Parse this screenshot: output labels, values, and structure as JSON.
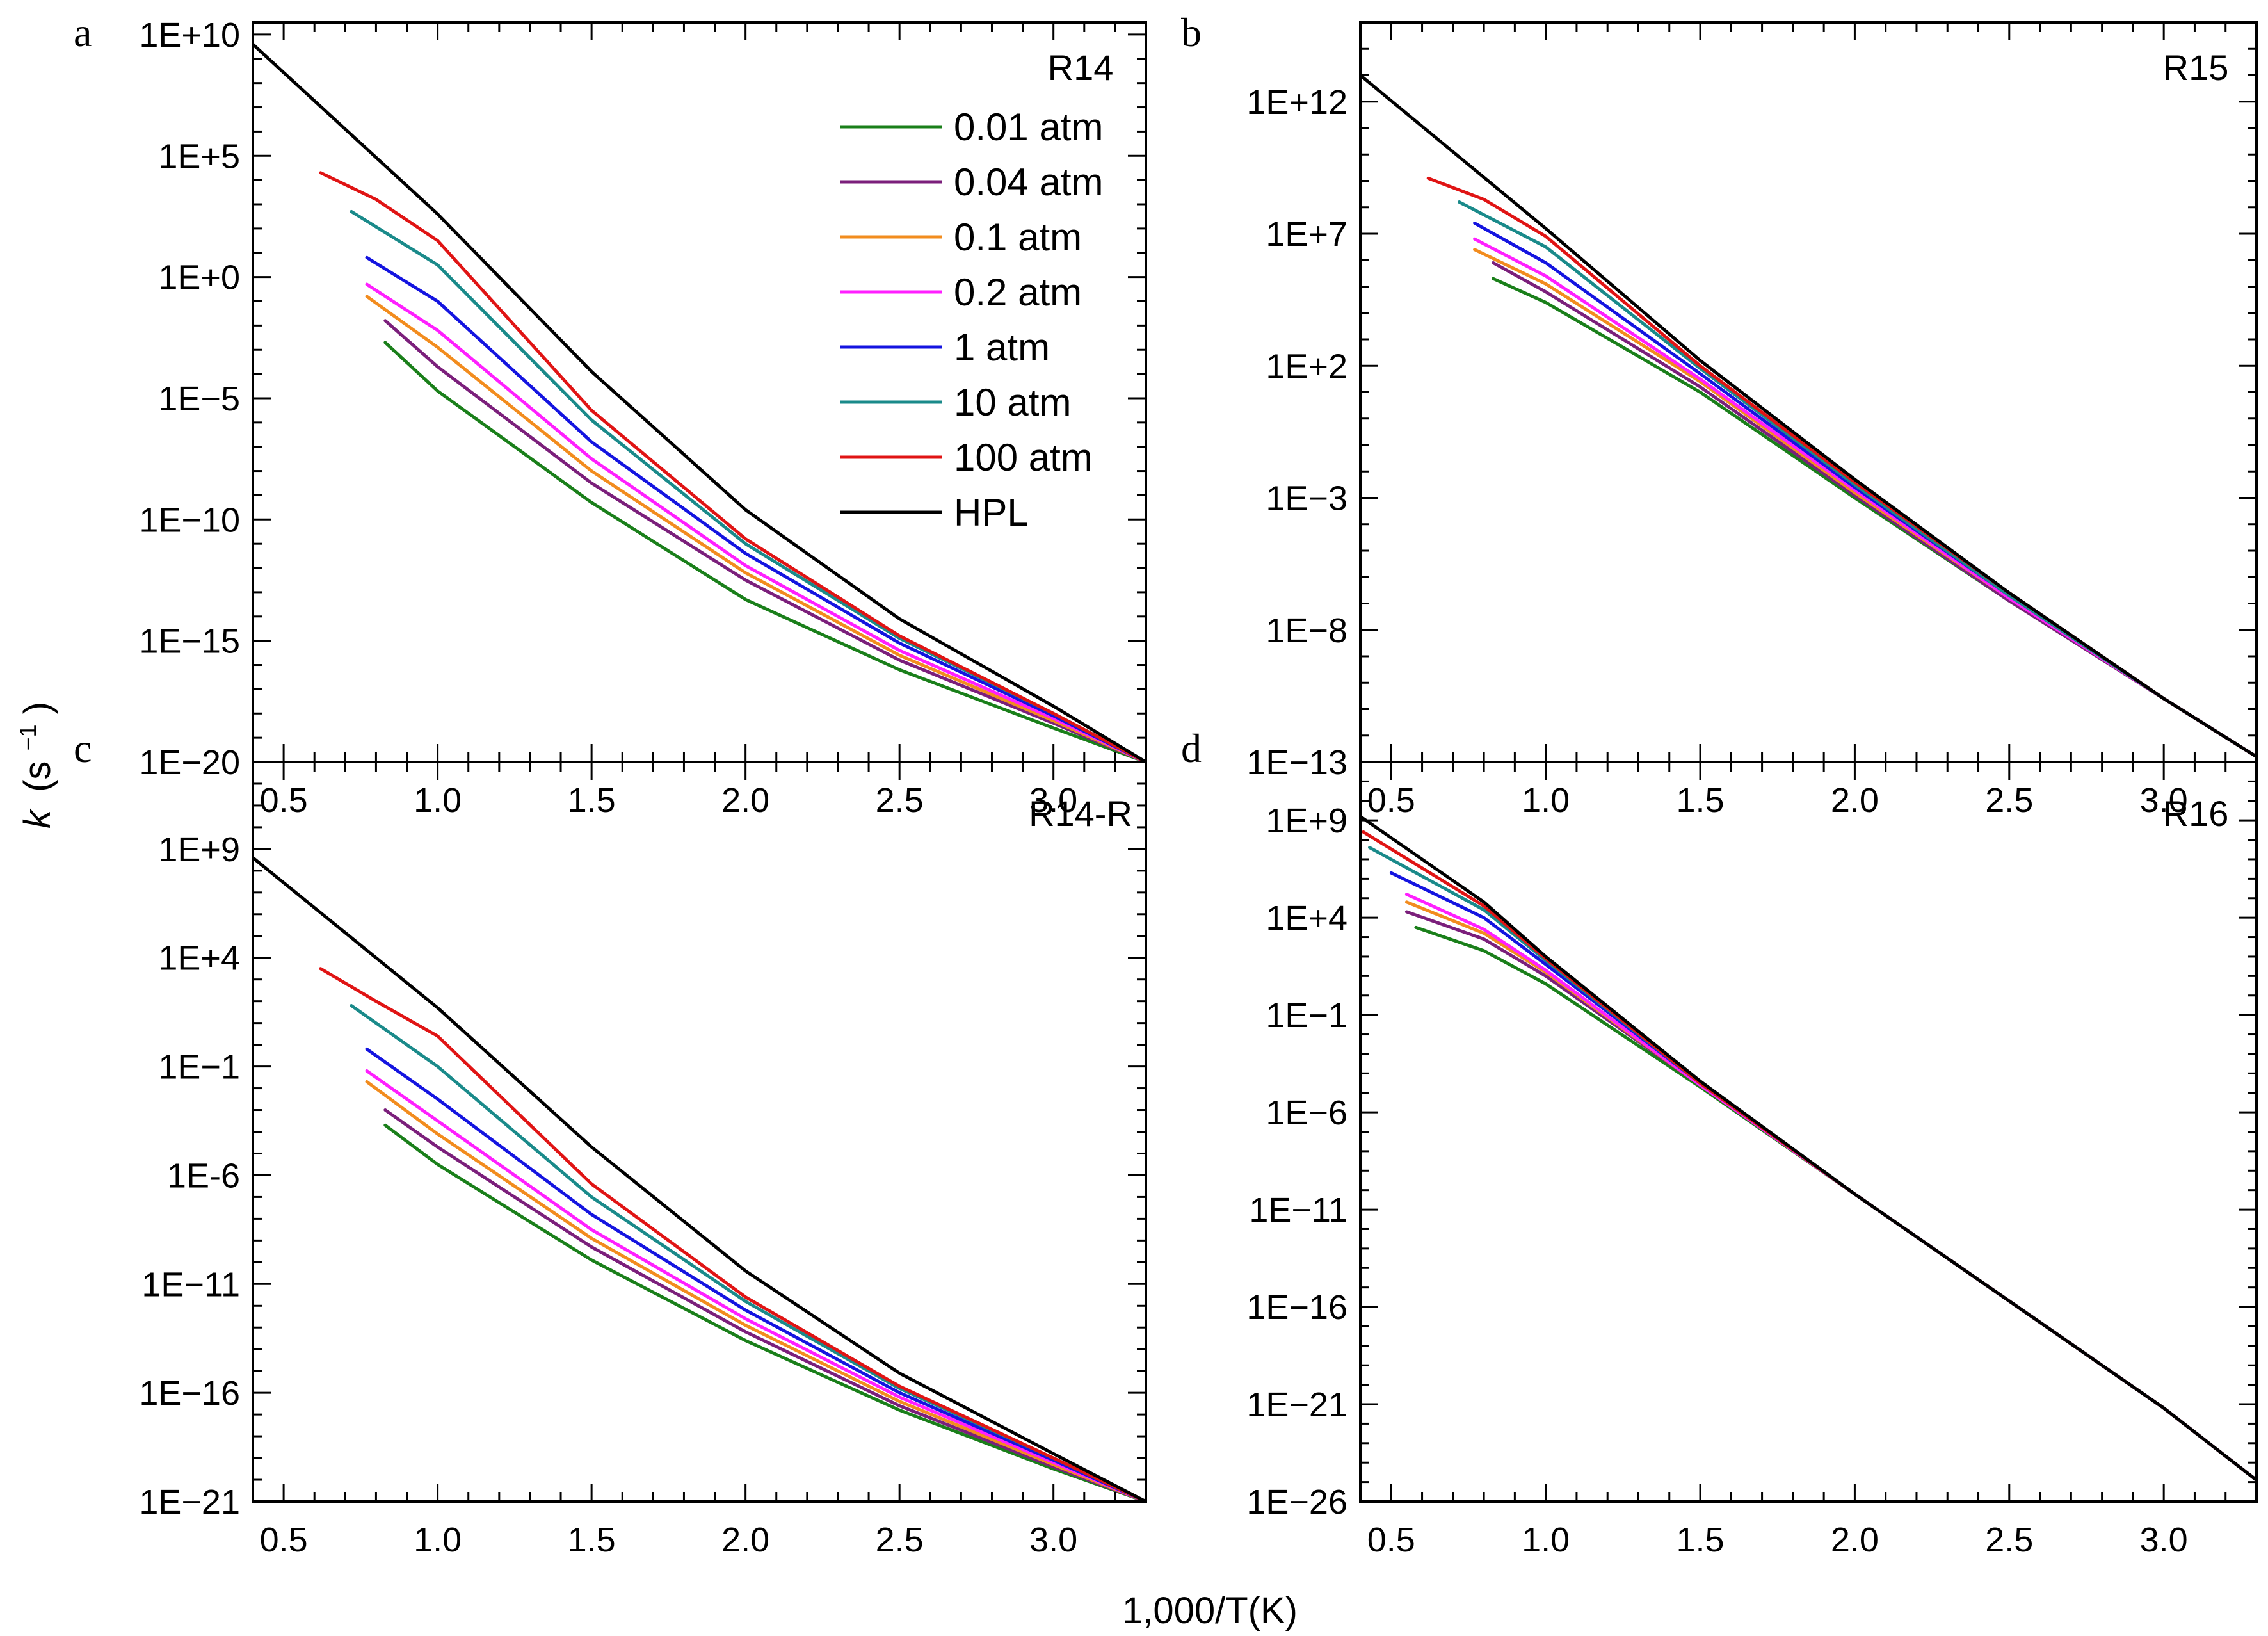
{
  "figure": {
    "xlabel": "1,000/T(K)",
    "ylabel_main": "k",
    "ylabel_units": "(s",
    "ylabel_sup": "−1",
    "ylabel_close": ")"
  },
  "legend": {
    "items": [
      {
        "label": "0.01 atm",
        "color": "#1a7f1a"
      },
      {
        "label": "0.04 atm",
        "color": "#7b1f7b"
      },
      {
        "label": "0.1 atm",
        "color": "#f28c1e"
      },
      {
        "label": "0.2 atm",
        "color": "#ff1fff"
      },
      {
        "label": "1 atm",
        "color": "#1414e0"
      },
      {
        "label": "10 atm",
        "color": "#1a8a8a"
      },
      {
        "label": "100 atm",
        "color": "#e01414"
      },
      {
        "label": "HPL",
        "color": "#000000"
      }
    ]
  },
  "chart_data": [
    {
      "panel": "a",
      "type": "line",
      "title": "R14",
      "xlabel": "1,000/T(K)",
      "ylabel": "k (s⁻¹)",
      "yscale": "log",
      "xlim": [
        0.4,
        3.3
      ],
      "ylim_exp": [
        -20,
        10.5
      ],
      "xticks": [
        "0.5",
        "1.0",
        "1.5",
        "2.0",
        "2.5",
        "3.0"
      ],
      "yticks": [
        {
          "exp": 10,
          "label": "1E+10"
        },
        {
          "exp": 5,
          "label": "1E+5"
        },
        {
          "exp": 0,
          "label": "1E+0"
        },
        {
          "exp": -5,
          "label": "1E−5"
        },
        {
          "exp": -10,
          "label": "1E−10"
        },
        {
          "exp": -15,
          "label": "1E−15"
        },
        {
          "exp": -20,
          "label": "1E−20"
        }
      ],
      "series": [
        {
          "name": "0.01 atm",
          "color": "#1a7f1a",
          "x": [
            0.83,
            1.0,
            1.5,
            2.0,
            2.5,
            3.0,
            3.3
          ],
          "log10_k": [
            -2.7,
            -4.7,
            -9.3,
            -13.3,
            -16.2,
            -18.6,
            -20.0
          ]
        },
        {
          "name": "0.04 atm",
          "color": "#7b1f7b",
          "x": [
            0.83,
            1.0,
            1.5,
            2.0,
            2.5,
            3.0,
            3.3
          ],
          "log10_k": [
            -1.8,
            -3.7,
            -8.5,
            -12.5,
            -15.8,
            -18.4,
            -20.0
          ]
        },
        {
          "name": "0.1 atm",
          "color": "#f28c1e",
          "x": [
            0.77,
            1.0,
            1.5,
            2.0,
            2.5,
            3.0,
            3.3
          ],
          "log10_k": [
            -0.8,
            -2.9,
            -8.0,
            -12.2,
            -15.6,
            -18.3,
            -20.0
          ]
        },
        {
          "name": "0.2 atm",
          "color": "#ff1fff",
          "x": [
            0.77,
            1.0,
            1.5,
            2.0,
            2.5,
            3.0,
            3.3
          ],
          "log10_k": [
            -0.3,
            -2.2,
            -7.5,
            -11.9,
            -15.4,
            -18.2,
            -20.0
          ]
        },
        {
          "name": "1 atm",
          "color": "#1414e0",
          "x": [
            0.77,
            1.0,
            1.5,
            2.0,
            2.5,
            3.0,
            3.3
          ],
          "log10_k": [
            0.8,
            -1.0,
            -6.8,
            -11.4,
            -15.1,
            -18.1,
            -20.0
          ]
        },
        {
          "name": "10 atm",
          "color": "#1a8a8a",
          "x": [
            0.72,
            1.0,
            1.5,
            2.0,
            2.5,
            3.0,
            3.3
          ],
          "log10_k": [
            2.7,
            0.5,
            -5.9,
            -11.0,
            -14.9,
            -18.0,
            -20.0
          ]
        },
        {
          "name": "100 atm",
          "color": "#e01414",
          "x": [
            0.62,
            0.8,
            1.0,
            1.5,
            2.0,
            2.5,
            3.0,
            3.3
          ],
          "log10_k": [
            4.3,
            3.2,
            1.5,
            -5.5,
            -10.8,
            -14.8,
            -18.0,
            -20.0
          ]
        },
        {
          "name": "HPL",
          "color": "#000000",
          "x": [
            0.4,
            1.0,
            1.5,
            2.0,
            2.5,
            3.0,
            3.3
          ],
          "log10_k": [
            9.6,
            2.6,
            -3.9,
            -9.6,
            -14.1,
            -17.7,
            -20.0
          ]
        }
      ]
    },
    {
      "panel": "b",
      "type": "line",
      "title": "R15",
      "xlabel": "1,000/T(K)",
      "ylabel": "k (s⁻¹)",
      "yscale": "log",
      "xlim": [
        0.4,
        3.3
      ],
      "ylim_exp": [
        -13,
        15
      ],
      "xticks": [
        "0.5",
        "1.0",
        "1.5",
        "2.0",
        "2.5",
        "3.0"
      ],
      "yticks": [
        {
          "exp": 12,
          "label": "1E+12"
        },
        {
          "exp": 7,
          "label": "1E+7"
        },
        {
          "exp": 2,
          "label": "1E+2"
        },
        {
          "exp": -3,
          "label": "1E−3"
        },
        {
          "exp": -8,
          "label": "1E−8"
        },
        {
          "exp": -13,
          "label": "1E−13"
        }
      ],
      "series": [
        {
          "name": "0.01 atm",
          "color": "#1a7f1a",
          "x": [
            0.83,
            1.0,
            1.5,
            2.0,
            2.5,
            3.0,
            3.3
          ],
          "log10_k": [
            5.3,
            4.4,
            1.0,
            -3.0,
            -6.9,
            -10.6,
            -12.8
          ]
        },
        {
          "name": "0.04 atm",
          "color": "#7b1f7b",
          "x": [
            0.83,
            1.0,
            1.5,
            2.0,
            2.5,
            3.0,
            3.3
          ],
          "log10_k": [
            5.9,
            4.8,
            1.2,
            -2.9,
            -6.9,
            -10.6,
            -12.8
          ]
        },
        {
          "name": "0.1 atm",
          "color": "#f28c1e",
          "x": [
            0.77,
            1.0,
            1.5,
            2.0,
            2.5,
            3.0,
            3.3
          ],
          "log10_k": [
            6.4,
            5.1,
            1.4,
            -2.8,
            -6.8,
            -10.6,
            -12.8
          ]
        },
        {
          "name": "0.2 atm",
          "color": "#ff1fff",
          "x": [
            0.77,
            1.0,
            1.5,
            2.0,
            2.5,
            3.0,
            3.3
          ],
          "log10_k": [
            6.8,
            5.4,
            1.5,
            -2.7,
            -6.8,
            -10.6,
            -12.8
          ]
        },
        {
          "name": "1 atm",
          "color": "#1414e0",
          "x": [
            0.77,
            1.0,
            1.5,
            2.0,
            2.5,
            3.0,
            3.3
          ],
          "log10_k": [
            7.4,
            5.9,
            1.7,
            -2.6,
            -6.7,
            -10.6,
            -12.8
          ]
        },
        {
          "name": "10 atm",
          "color": "#1a8a8a",
          "x": [
            0.72,
            1.0,
            1.5,
            2.0,
            2.5,
            3.0,
            3.3
          ],
          "log10_k": [
            8.2,
            6.5,
            1.9,
            -2.5,
            -6.7,
            -10.6,
            -12.8
          ]
        },
        {
          "name": "100 atm",
          "color": "#e01414",
          "x": [
            0.62,
            0.8,
            1.0,
            1.5,
            2.0,
            2.5,
            3.0,
            3.3
          ],
          "log10_k": [
            9.1,
            8.3,
            6.9,
            2.0,
            -2.4,
            -6.6,
            -10.6,
            -12.8
          ]
        },
        {
          "name": "HPL",
          "color": "#000000",
          "x": [
            0.4,
            1.0,
            1.5,
            2.0,
            2.5,
            3.0,
            3.3
          ],
          "log10_k": [
            13.0,
            7.2,
            2.2,
            -2.3,
            -6.6,
            -10.6,
            -12.8
          ]
        }
      ]
    },
    {
      "panel": "c",
      "type": "line",
      "title": "R14-R",
      "xlabel": "1,000/T(K)",
      "ylabel": "k (s⁻¹)",
      "yscale": "log",
      "xlim": [
        0.4,
        3.3
      ],
      "ylim_exp": [
        -21,
        13
      ],
      "xticks": [
        "0.5",
        "1.0",
        "1.5",
        "2.0",
        "2.5",
        "3.0"
      ],
      "yticks": [
        {
          "exp": 9,
          "label": "1E+9"
        },
        {
          "exp": 4,
          "label": "1E+4"
        },
        {
          "exp": -1,
          "label": "1E−1"
        },
        {
          "exp": -6,
          "label": "1E-6"
        },
        {
          "exp": -11,
          "label": "1E−11"
        },
        {
          "exp": -16,
          "label": "1E−16"
        },
        {
          "exp": -21,
          "label": "1E−21"
        }
      ],
      "series": [
        {
          "name": "0.01 atm",
          "color": "#1a7f1a",
          "x": [
            0.83,
            1.0,
            1.5,
            2.0,
            2.5,
            3.0,
            3.3
          ],
          "log10_k": [
            -3.7,
            -5.5,
            -9.9,
            -13.6,
            -16.8,
            -19.5,
            -21.0
          ]
        },
        {
          "name": "0.04 atm",
          "color": "#7b1f7b",
          "x": [
            0.83,
            1.0,
            1.5,
            2.0,
            2.5,
            3.0,
            3.3
          ],
          "log10_k": [
            -3.0,
            -4.7,
            -9.3,
            -13.2,
            -16.6,
            -19.4,
            -21.0
          ]
        },
        {
          "name": "0.1 atm",
          "color": "#f28c1e",
          "x": [
            0.77,
            1.0,
            1.5,
            2.0,
            2.5,
            3.0,
            3.3
          ],
          "log10_k": [
            -1.7,
            -4.1,
            -8.9,
            -12.9,
            -16.4,
            -19.3,
            -21.0
          ]
        },
        {
          "name": "0.2 atm",
          "color": "#ff1fff",
          "x": [
            0.77,
            1.0,
            1.5,
            2.0,
            2.5,
            3.0,
            3.3
          ],
          "log10_k": [
            -1.2,
            -3.5,
            -8.5,
            -12.6,
            -16.2,
            -19.2,
            -21.0
          ]
        },
        {
          "name": "1 atm",
          "color": "#1414e0",
          "x": [
            0.77,
            1.0,
            1.5,
            2.0,
            2.5,
            3.0,
            3.3
          ],
          "log10_k": [
            -0.2,
            -2.5,
            -7.8,
            -12.2,
            -16.0,
            -19.1,
            -21.0
          ]
        },
        {
          "name": "10 atm",
          "color": "#1a8a8a",
          "x": [
            0.72,
            1.0,
            1.5,
            2.0,
            2.5,
            3.0,
            3.3
          ],
          "log10_k": [
            1.8,
            -1.0,
            -7.0,
            -11.8,
            -15.8,
            -19.0,
            -21.0
          ]
        },
        {
          "name": "100 atm",
          "color": "#e01414",
          "x": [
            0.62,
            0.8,
            1.0,
            1.5,
            2.0,
            2.5,
            3.0,
            3.3
          ],
          "log10_k": [
            3.5,
            2.0,
            0.4,
            -6.4,
            -11.6,
            -15.7,
            -19.0,
            -21.0
          ]
        },
        {
          "name": "HPL",
          "color": "#000000",
          "x": [
            0.4,
            1.0,
            1.5,
            2.0,
            2.5,
            3.0,
            3.3
          ],
          "log10_k": [
            8.6,
            1.7,
            -4.7,
            -10.4,
            -15.1,
            -18.8,
            -21.0
          ]
        }
      ]
    },
    {
      "panel": "d",
      "type": "line",
      "title": "R16",
      "xlabel": "1,000/T(K)",
      "ylabel": "k (s⁻¹)",
      "yscale": "log",
      "xlim": [
        0.4,
        3.3
      ],
      "ylim_exp": [
        -26,
        12
      ],
      "xticks": [
        "0.5",
        "1.0",
        "1.5",
        "2.0",
        "2.5",
        "3.0"
      ],
      "yticks": [
        {
          "exp": 9,
          "label": "1E+9"
        },
        {
          "exp": 4,
          "label": "1E+4"
        },
        {
          "exp": -1,
          "label": "1E−1"
        },
        {
          "exp": -6,
          "label": "1E−6"
        },
        {
          "exp": -11,
          "label": "1E−11"
        },
        {
          "exp": -16,
          "label": "1E−16"
        },
        {
          "exp": -21,
          "label": "1E−21"
        },
        {
          "exp": -26,
          "label": "1E−26"
        }
      ],
      "series": [
        {
          "name": "0.01 atm",
          "color": "#1a7f1a",
          "x": [
            0.58,
            0.8,
            1.0,
            1.5,
            2.0,
            2.5,
            3.0,
            3.3
          ],
          "log10_k": [
            3.5,
            2.3,
            0.6,
            -4.7,
            -10.2,
            -15.7,
            -21.2,
            -24.9
          ]
        },
        {
          "name": "0.04 atm",
          "color": "#7b1f7b",
          "x": [
            0.55,
            0.8,
            1.0,
            1.5,
            2.0,
            2.5,
            3.0,
            3.3
          ],
          "log10_k": [
            4.3,
            2.9,
            1.0,
            -4.6,
            -10.2,
            -15.7,
            -21.2,
            -24.9
          ]
        },
        {
          "name": "0.1 atm",
          "color": "#f28c1e",
          "x": [
            0.55,
            0.8,
            1.0,
            1.5,
            2.0,
            2.5,
            3.0,
            3.3
          ],
          "log10_k": [
            4.8,
            3.2,
            1.2,
            -4.6,
            -10.2,
            -15.7,
            -21.2,
            -24.9
          ]
        },
        {
          "name": "0.2 atm",
          "color": "#ff1fff",
          "x": [
            0.55,
            0.8,
            1.0,
            1.5,
            2.0,
            2.5,
            3.0,
            3.3
          ],
          "log10_k": [
            5.2,
            3.4,
            1.3,
            -4.6,
            -10.2,
            -15.7,
            -21.2,
            -24.9
          ]
        },
        {
          "name": "1 atm",
          "color": "#1414e0",
          "x": [
            0.5,
            0.8,
            1.0,
            1.5,
            2.0,
            2.5,
            3.0,
            3.3
          ],
          "log10_k": [
            6.3,
            4.0,
            1.6,
            -4.5,
            -10.2,
            -15.7,
            -21.2,
            -24.9
          ]
        },
        {
          "name": "10 atm",
          "color": "#1a8a8a",
          "x": [
            0.43,
            0.8,
            1.0,
            1.5,
            2.0,
            2.5,
            3.0,
            3.3
          ],
          "log10_k": [
            7.6,
            4.4,
            1.8,
            -4.5,
            -10.2,
            -15.7,
            -21.2,
            -24.9
          ]
        },
        {
          "name": "100 atm",
          "color": "#e01414",
          "x": [
            0.41,
            0.8,
            1.0,
            1.5,
            2.0,
            2.5,
            3.0,
            3.3
          ],
          "log10_k": [
            8.4,
            4.6,
            1.9,
            -4.5,
            -10.2,
            -15.7,
            -21.2,
            -24.9
          ]
        },
        {
          "name": "HPL",
          "color": "#000000",
          "x": [
            0.4,
            0.8,
            1.0,
            1.5,
            2.0,
            2.5,
            3.0,
            3.3
          ],
          "log10_k": [
            9.2,
            4.8,
            2.0,
            -4.4,
            -10.2,
            -15.7,
            -21.2,
            -24.9
          ]
        }
      ]
    }
  ]
}
